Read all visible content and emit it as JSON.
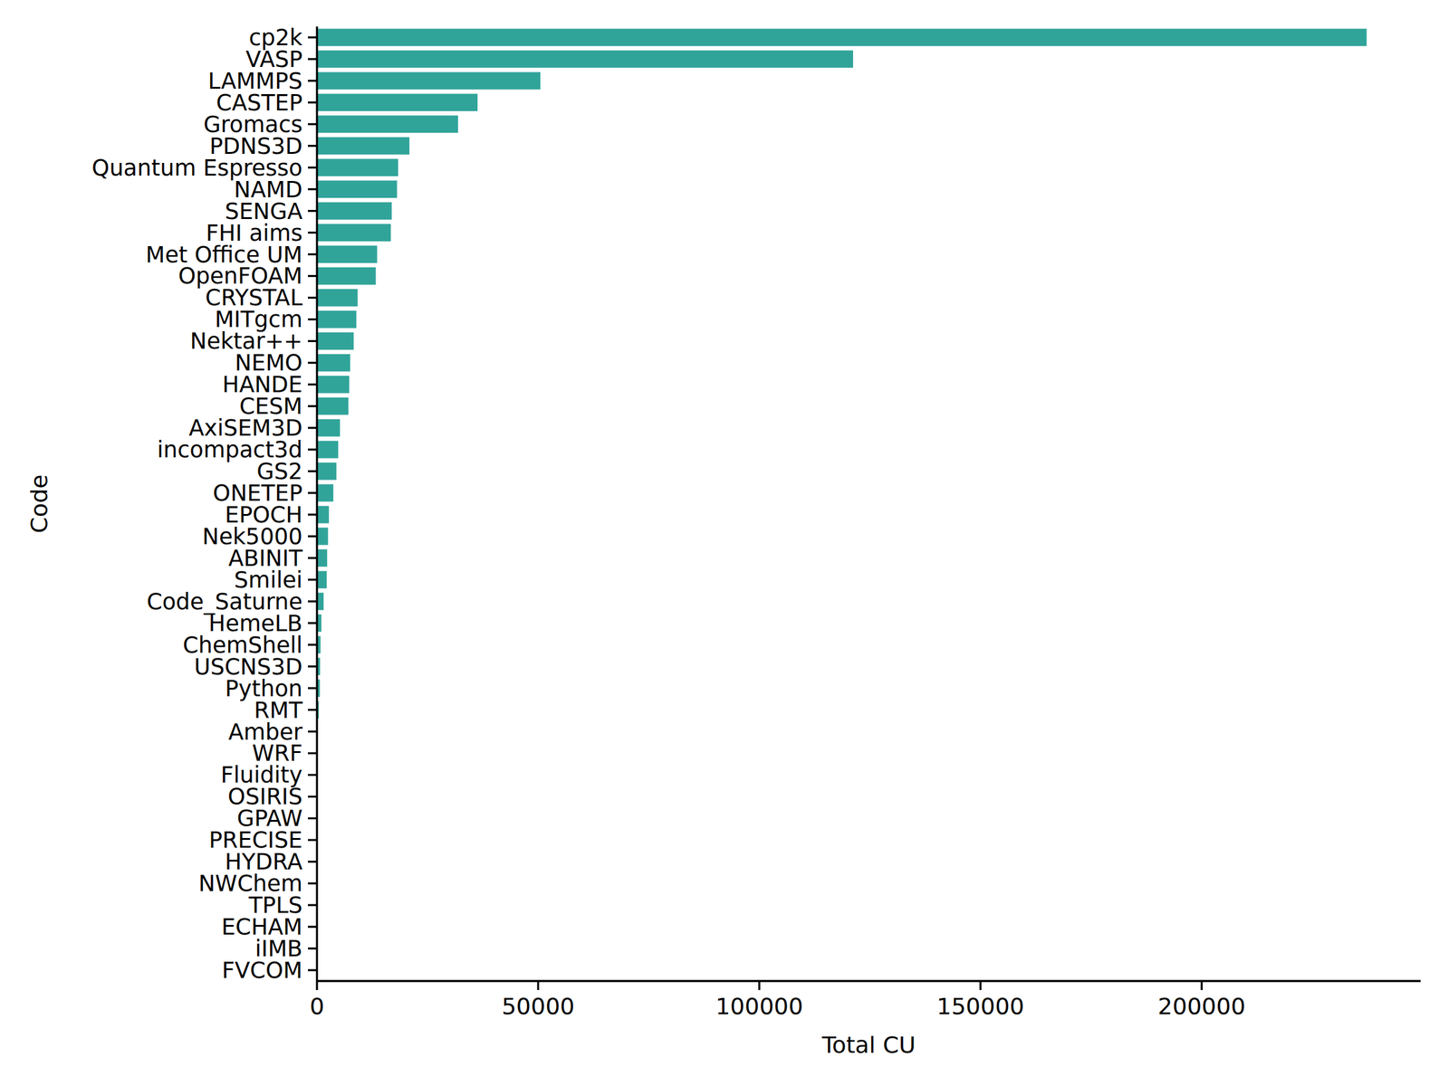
{
  "chart_data": {
    "type": "bar",
    "orientation": "horizontal",
    "x_label": "Total CU",
    "y_label": "Code",
    "categories": [
      "cp2k",
      "VASP",
      "LAMMPS",
      "CASTEP",
      "Gromacs",
      "PDNS3D",
      "Quantum Espresso",
      "NAMD",
      "SENGA",
      "FHI aims",
      "Met Office UM",
      "OpenFOAM",
      "CRYSTAL",
      "MITgcm",
      "Nektar++",
      "NEMO",
      "HANDE",
      "CESM",
      "AxiSEM3D",
      "incompact3d",
      "GS2",
      "ONETEP",
      "EPOCH",
      "Nek5000",
      "ABINIT",
      "Smilei",
      "Code_Saturne",
      "HemeLB",
      "ChemShell",
      "USCNS3D",
      "Python",
      "RMT",
      "Amber",
      "WRF",
      "Fluidity",
      "OSIRIS",
      "GPAW",
      "PRECISE",
      "HYDRA",
      "NWChem",
      "TPLS",
      "ECHAM",
      "iIMB",
      "FVCOM"
    ],
    "values": [
      237300,
      121200,
      50500,
      36300,
      31900,
      20900,
      18350,
      18100,
      16900,
      16700,
      13600,
      13300,
      9200,
      8900,
      8300,
      7500,
      7300,
      7100,
      5200,
      4800,
      4400,
      3700,
      2700,
      2500,
      2300,
      2200,
      1500,
      1000,
      800,
      700,
      650,
      400,
      150,
      120,
      100,
      80,
      60,
      50,
      40,
      30,
      20,
      15,
      10,
      5
    ],
    "color": "#31a49a",
    "xlim": [
      0,
      249500
    ],
    "xticks": [
      0,
      50000,
      100000,
      150000,
      200000
    ],
    "grid": false
  }
}
